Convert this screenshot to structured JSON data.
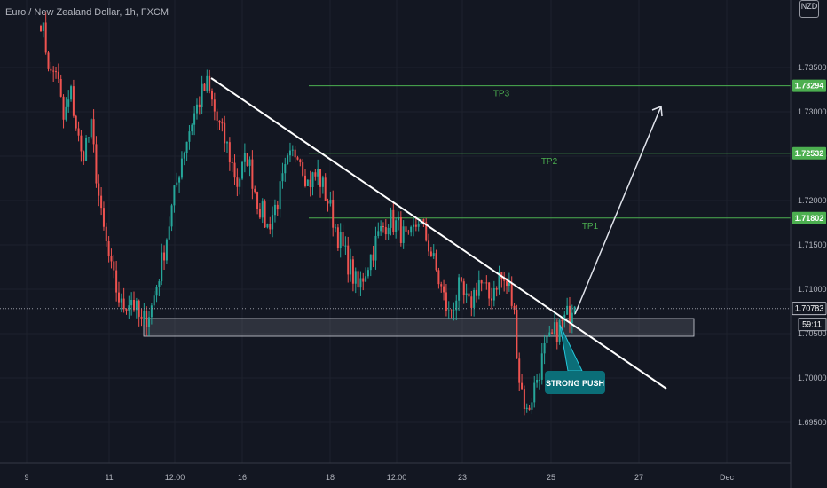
{
  "title": "Euro / New Zealand Dollar, 1h, FXCM",
  "currency_badge": "NZD",
  "colors": {
    "background": "#131722",
    "up": "#26a69a",
    "down": "#ef5350",
    "target_line": "#4caf50",
    "axis_text": "#b2b5be",
    "callout": "#0b6e78"
  },
  "annotations": {
    "tp_labels": [
      "TP3",
      "TP2",
      "TP1"
    ],
    "strong_push": "STRONG PUSH",
    "countdown": "59:11"
  },
  "chart_data": {
    "type": "candlestick",
    "symbol": "EUR/NZD",
    "timeframe": "1h",
    "yticks": [
      1.695,
      1.7,
      1.705,
      1.71,
      1.715,
      1.72,
      1.725,
      1.73,
      1.735
    ],
    "ytick_labels": [
      "1.69500",
      "1.70000",
      "1.70500",
      "1.71000",
      "1.71500",
      "1.72000",
      "1.72500",
      "1.73000",
      "1.73500"
    ],
    "ylim": [
      1.6926,
      1.7412
    ],
    "xticks": [
      "9",
      "11",
      "12:00",
      "16",
      "18",
      "12:00",
      "23",
      "25",
      "27",
      "Dec"
    ],
    "price_labels": [
      {
        "value": 1.73294,
        "text": "1.73294",
        "kind": "target"
      },
      {
        "value": 1.72532,
        "text": "1.72532",
        "kind": "target"
      },
      {
        "value": 1.71802,
        "text": "1.71802",
        "kind": "target"
      },
      {
        "value": 1.70783,
        "text": "1.70783",
        "kind": "last"
      }
    ],
    "horizontal_lines": [
      {
        "name": "TP3",
        "value": 1.73294
      },
      {
        "name": "TP2",
        "value": 1.72532
      },
      {
        "name": "TP1",
        "value": 1.71802
      }
    ],
    "support_zone": {
      "top": 1.7067,
      "bottom": 1.7047
    },
    "price_path": [
      [
        0,
        1.7405
      ],
      [
        4,
        1.734
      ],
      [
        6,
        1.735
      ],
      [
        9,
        1.729
      ],
      [
        12,
        1.732
      ],
      [
        16,
        1.725
      ],
      [
        20,
        1.728
      ],
      [
        24,
        1.718
      ],
      [
        28,
        1.712
      ],
      [
        32,
        1.708
      ],
      [
        36,
        1.709
      ],
      [
        40,
        1.706
      ],
      [
        44,
        1.708
      ],
      [
        48,
        1.713
      ],
      [
        52,
        1.719
      ],
      [
        56,
        1.725
      ],
      [
        60,
        1.729
      ],
      [
        64,
        1.732
      ],
      [
        66,
        1.733
      ],
      [
        70,
        1.729
      ],
      [
        74,
        1.726
      ],
      [
        78,
        1.722
      ],
      [
        82,
        1.725
      ],
      [
        86,
        1.72
      ],
      [
        90,
        1.717
      ],
      [
        94,
        1.72
      ],
      [
        98,
        1.724
      ],
      [
        102,
        1.726
      ],
      [
        106,
        1.722
      ],
      [
        110,
        1.723
      ],
      [
        114,
        1.72
      ],
      [
        118,
        1.716
      ],
      [
        122,
        1.713
      ],
      [
        126,
        1.71
      ],
      [
        130,
        1.713
      ],
      [
        134,
        1.716
      ],
      [
        138,
        1.718
      ],
      [
        142,
        1.717
      ],
      [
        146,
        1.715
      ],
      [
        150,
        1.718
      ],
      [
        154,
        1.715
      ],
      [
        158,
        1.711
      ],
      [
        162,
        1.707
      ],
      [
        166,
        1.71
      ],
      [
        170,
        1.708
      ],
      [
        174,
        1.711
      ],
      [
        178,
        1.709
      ],
      [
        182,
        1.7115
      ],
      [
        186,
        1.71
      ],
      [
        188,
        1.707
      ],
      [
        190,
        1.7
      ],
      [
        193,
        1.696
      ],
      [
        196,
        1.699
      ],
      [
        200,
        1.703
      ],
      [
        204,
        1.705
      ],
      [
        208,
        1.7065
      ],
      [
        210,
        1.7075
      ],
      [
        212,
        1.7092
      ]
    ]
  }
}
